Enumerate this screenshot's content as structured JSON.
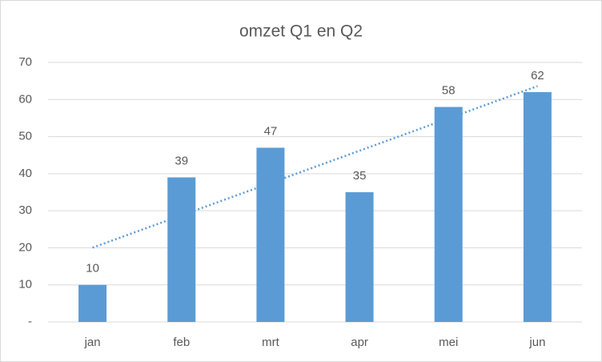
{
  "chart_data": {
    "type": "bar",
    "title": "omzet Q1 en Q2",
    "categories": [
      "jan",
      "feb",
      "mrt",
      "apr",
      "mei",
      "jun"
    ],
    "values": [
      10,
      39,
      47,
      35,
      58,
      62
    ],
    "color": "#5b9bd5",
    "ylim": [
      0,
      70
    ],
    "yticks": [
      {
        "value": 0,
        "label": "-"
      },
      10,
      20,
      30,
      40,
      50,
      60,
      70
    ],
    "grid": true,
    "trendline": "linear"
  }
}
